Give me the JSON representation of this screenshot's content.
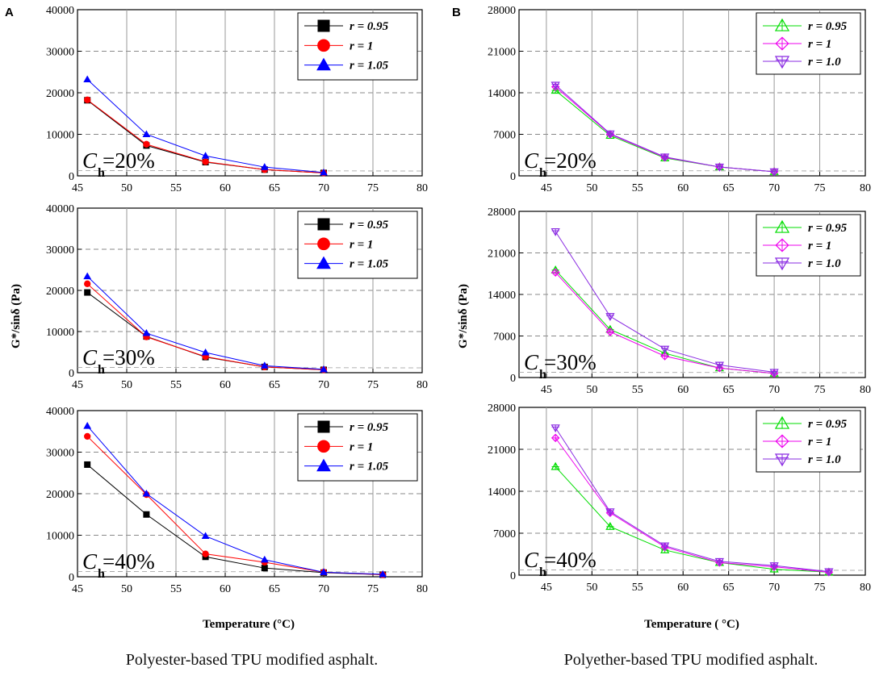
{
  "chart_data": [
    {
      "panel": "A",
      "type": "line",
      "ylim": [
        0,
        40000
      ],
      "xlim": [
        45,
        80
      ],
      "yticks": [
        "0",
        "10000",
        "20000",
        "30000",
        "40000"
      ],
      "xticks": [
        "45",
        "50",
        "55",
        "60",
        "65",
        "70",
        "75",
        "80"
      ],
      "ch_label": "C",
      "ch_sub": "h",
      "ch_value": "=20%",
      "series": [
        {
          "name": "r = 0.95",
          "x": [
            46,
            52,
            58,
            64,
            70
          ],
          "values": [
            18200,
            7300,
            3300,
            1500,
            700
          ]
        },
        {
          "name": "r = 1",
          "x": [
            46,
            52,
            58,
            64,
            70
          ],
          "values": [
            18300,
            7600,
            3400,
            1500,
            700
          ]
        },
        {
          "name": "r = 1.05",
          "x": [
            46,
            52,
            58,
            64,
            70
          ],
          "values": [
            23200,
            10000,
            4800,
            2100,
            800
          ]
        }
      ]
    },
    {
      "panel": "A",
      "type": "line",
      "ylim": [
        0,
        40000
      ],
      "xlim": [
        45,
        80
      ],
      "yticks": [
        "0",
        "10000",
        "20000",
        "30000",
        "40000"
      ],
      "xticks": [
        "45",
        "50",
        "55",
        "60",
        "65",
        "70",
        "75",
        "80"
      ],
      "ch_label": "C",
      "ch_sub": "h",
      "ch_value": "=30%",
      "series": [
        {
          "name": "r = 0.95",
          "x": [
            46,
            52,
            58,
            64,
            70
          ],
          "values": [
            19500,
            8800,
            3800,
            1400,
            700
          ]
        },
        {
          "name": "r = 1",
          "x": [
            46,
            52,
            58,
            64,
            70
          ],
          "values": [
            21600,
            8700,
            3900,
            1400,
            700
          ]
        },
        {
          "name": "r = 1.05",
          "x": [
            46,
            52,
            58,
            64,
            70
          ],
          "values": [
            23400,
            9600,
            4900,
            1700,
            800
          ]
        }
      ]
    },
    {
      "panel": "A",
      "type": "line",
      "ylim": [
        0,
        40000
      ],
      "xlim": [
        45,
        80
      ],
      "yticks": [
        "0",
        "10000",
        "20000",
        "30000",
        "40000"
      ],
      "xticks": [
        "45",
        "50",
        "55",
        "60",
        "65",
        "70",
        "75",
        "80"
      ],
      "ch_label": "C",
      "ch_sub": "h",
      "ch_value": "=40%",
      "series": [
        {
          "name": "r = 0.95",
          "x": [
            46,
            52,
            58,
            64,
            70,
            76
          ],
          "values": [
            27000,
            15000,
            4800,
            2100,
            1000,
            500
          ]
        },
        {
          "name": "r = 1",
          "x": [
            46,
            52,
            58,
            64,
            70,
            76
          ],
          "values": [
            33800,
            19800,
            5500,
            3500,
            1100,
            500
          ]
        },
        {
          "name": "r = 1.05",
          "x": [
            46,
            52,
            58,
            64,
            70,
            76
          ],
          "values": [
            36300,
            20000,
            9800,
            4100,
            1100,
            600
          ]
        }
      ]
    },
    {
      "panel": "B",
      "type": "line",
      "ylim": [
        0,
        28000
      ],
      "xlim": [
        42,
        80
      ],
      "yticks": [
        "0",
        "7000",
        "14000",
        "21000",
        "28000"
      ],
      "xticks": [
        "45",
        "50",
        "55",
        "60",
        "65",
        "70",
        "75",
        "80"
      ],
      "ch_label": "C",
      "ch_sub": "h",
      "ch_value": "=20%",
      "series": [
        {
          "name": "r = 0.95",
          "x": [
            46,
            52,
            58,
            64,
            70
          ],
          "values": [
            14400,
            6800,
            3000,
            1500,
            700
          ]
        },
        {
          "name": "r = 1",
          "x": [
            46,
            52,
            58,
            64,
            70
          ],
          "values": [
            15000,
            7000,
            3100,
            1500,
            700
          ]
        },
        {
          "name": "r = 1.0",
          "x": [
            46,
            52,
            58,
            64,
            70
          ],
          "values": [
            15300,
            7100,
            3200,
            1500,
            700
          ]
        }
      ]
    },
    {
      "panel": "B",
      "type": "line",
      "ylim": [
        0,
        28000
      ],
      "xlim": [
        42,
        80
      ],
      "yticks": [
        "0",
        "7000",
        "14000",
        "21000",
        "28000"
      ],
      "xticks": [
        "45",
        "50",
        "55",
        "60",
        "65",
        "70",
        "75",
        "80"
      ],
      "ch_label": "C",
      "ch_sub": "h",
      "ch_value": "=30%",
      "series": [
        {
          "name": "r = 0.95",
          "x": [
            46,
            52,
            58,
            64,
            70
          ],
          "values": [
            18100,
            8100,
            4100,
            1600,
            700
          ]
        },
        {
          "name": "r = 1",
          "x": [
            46,
            52,
            58,
            64,
            70
          ],
          "values": [
            17700,
            7700,
            3600,
            1600,
            700
          ]
        },
        {
          "name": "r = 1.0",
          "x": [
            46,
            52,
            58,
            64,
            70
          ],
          "values": [
            24600,
            10300,
            4800,
            2100,
            900
          ]
        }
      ]
    },
    {
      "panel": "B",
      "type": "line",
      "ylim": [
        0,
        28000
      ],
      "xlim": [
        42,
        80
      ],
      "yticks": [
        "0",
        "7000",
        "14000",
        "21000",
        "28000"
      ],
      "xticks": [
        "45",
        "50",
        "55",
        "60",
        "65",
        "70",
        "75",
        "80"
      ],
      "ch_label": "C",
      "ch_sub": "h",
      "ch_value": "=40%",
      "series": [
        {
          "name": "r = 0.95",
          "x": [
            46,
            52,
            58,
            64,
            70,
            76
          ],
          "values": [
            18100,
            8100,
            4200,
            2100,
            1000,
            500
          ]
        },
        {
          "name": "r = 1",
          "x": [
            46,
            52,
            58,
            64,
            70,
            76
          ],
          "values": [
            22900,
            10400,
            4700,
            2100,
            1400,
            500
          ]
        },
        {
          "name": "r = 1.0",
          "x": [
            46,
            52,
            58,
            64,
            70,
            76
          ],
          "values": [
            24600,
            10600,
            4900,
            2300,
            1600,
            600
          ]
        }
      ]
    }
  ],
  "panel_labels": {
    "a": "A",
    "b": "B"
  },
  "axis_labels": {
    "a_y": "G*/sinδ (Pa)",
    "b_y": "G*/sinδ (Pa)",
    "a_x": "Temperature (°C)",
    "b_x": "Temperature ( °C)"
  },
  "captions": {
    "a": "Polyester-based TPU modified asphalt.",
    "b": "Polyether-based TPU modified asphalt."
  },
  "series_colors": {
    "a": [
      "#000000",
      "#ff0000",
      "#0000ff"
    ],
    "b": [
      "#00dd00",
      "#ee00ee",
      "#8a2be2"
    ]
  },
  "series_markers": {
    "a": [
      "square",
      "circle",
      "triangle-up"
    ],
    "b": [
      "triangle-up-open",
      "diamond-cross-open",
      "triangle-down-open"
    ]
  }
}
